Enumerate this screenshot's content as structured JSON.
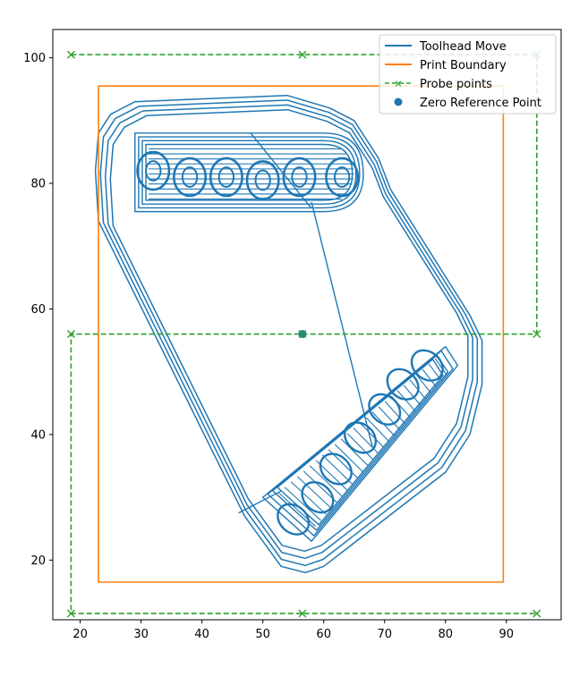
{
  "chart_data": {
    "type": "line",
    "title": "",
    "xlabel": "",
    "ylabel": "",
    "xlim": [
      15.5,
      99
    ],
    "ylim": [
      10.5,
      104.5
    ],
    "xticks": [
      20,
      30,
      40,
      50,
      60,
      70,
      80,
      90
    ],
    "yticks": [
      20,
      40,
      60,
      80,
      100
    ],
    "grid": false,
    "legend": {
      "placement": "top-right",
      "entries": [
        {
          "label": "Toolhead Move",
          "color": "#1f77b4",
          "style": "line"
        },
        {
          "label": "Print Boundary",
          "color": "#ff7f0e",
          "style": "line"
        },
        {
          "label": "Probe points",
          "color": "#2ca02c",
          "style": "dashed-x"
        },
        {
          "label": "Zero Reference Point",
          "color": "#1f77b4",
          "style": "dot"
        }
      ]
    },
    "series": [
      {
        "name": "Toolhead Move",
        "color": "#1f77b4",
        "outline": [
          [
            23,
            88
          ],
          [
            25,
            91
          ],
          [
            29,
            93
          ],
          [
            54,
            94
          ],
          [
            61,
            92
          ],
          [
            65,
            90
          ],
          [
            69,
            84
          ],
          [
            71,
            79
          ],
          [
            84,
            59
          ],
          [
            86,
            55
          ],
          [
            86,
            48
          ],
          [
            84,
            40
          ],
          [
            80,
            34
          ],
          [
            60,
            19
          ],
          [
            57,
            18
          ],
          [
            53,
            19
          ],
          [
            47,
            27
          ],
          [
            23,
            74
          ],
          [
            22.5,
            82
          ],
          [
            23,
            88
          ]
        ],
        "top_part": {
          "x1": 29,
          "x2": 66,
          "y1": 75.5,
          "y2": 88,
          "taper_start": 60,
          "tip": [
            66.5,
            81.5
          ]
        },
        "bottom_part": {
          "corners": [
            [
              50,
              30
            ],
            [
              58,
              23
            ],
            [
              82,
              51
            ],
            [
              80,
              54
            ]
          ]
        },
        "extra_segments": [
          [
            [
              46,
              27.5
            ],
            [
              53,
              31
            ]
          ],
          [
            [
              58,
              77
            ],
            [
              68,
              38
            ]
          ],
          [
            [
              48,
              88
            ],
            [
              58,
              76
            ]
          ]
        ]
      },
      {
        "name": "Print Boundary",
        "color": "#ff7f0e",
        "x": [
          23,
          89.5,
          89.5,
          23,
          23
        ],
        "y": [
          95.5,
          95.5,
          16.5,
          16.5,
          95.5
        ]
      },
      {
        "name": "Probe points",
        "color": "#2ca02c",
        "x": [
          18.5,
          56.5,
          95,
          95,
          56.5,
          18.5,
          18.5,
          56.5,
          95
        ],
        "y": [
          100.5,
          100.5,
          100.5,
          56,
          56,
          56,
          11.5,
          11.5,
          11.5
        ]
      },
      {
        "name": "Zero Reference Point",
        "color": "#1f77b4",
        "x": [
          56.5
        ],
        "y": [
          56
        ]
      }
    ]
  }
}
